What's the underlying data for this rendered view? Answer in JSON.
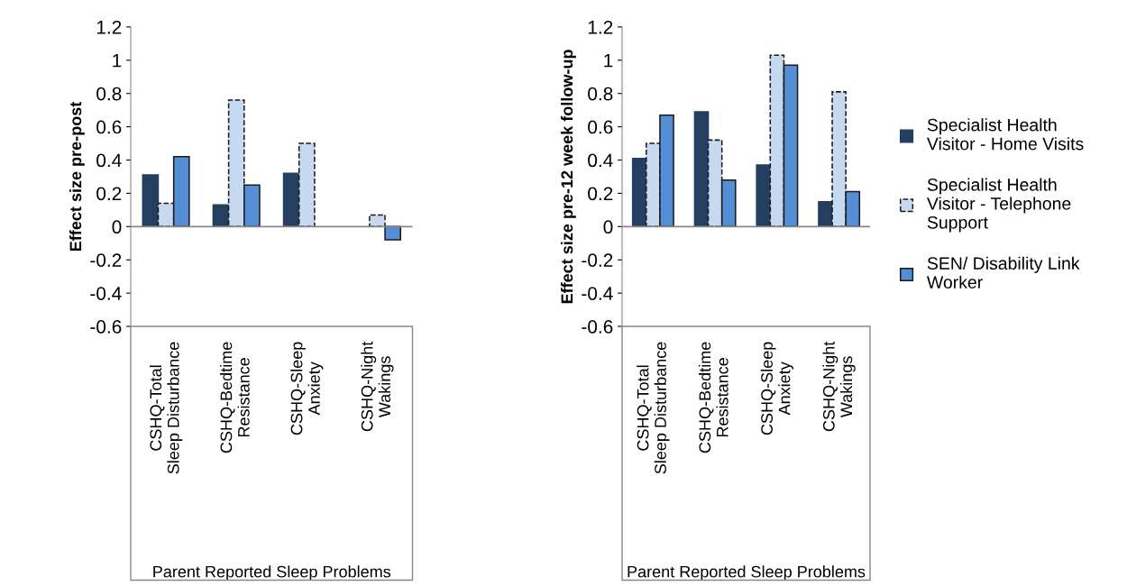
{
  "chart_data": [
    {
      "type": "bar",
      "ylabel": "Effect size pre-post",
      "xlabel": "Parent Reported Sleep Problems",
      "categories": [
        "CSHQ-Total\nSleep Disturbance",
        "CSHQ-Bedtime\nResistance",
        "CSHQ-Sleep\nAnxiety",
        "CSHQ-Night\nWakings"
      ],
      "series": [
        {
          "color": "#243f60",
          "line_style": "solid",
          "values": [
            0.31,
            0.13,
            0.32,
            null
          ]
        },
        {
          "color": "#c6d9f1",
          "line_style": "dashed",
          "values": [
            0.14,
            0.76,
            0.5,
            0.07
          ]
        },
        {
          "color": "#558ed5",
          "line_style": "solid",
          "values": [
            0.42,
            0.25,
            null,
            -0.08
          ]
        }
      ],
      "ylim": [
        -0.6,
        1.2
      ],
      "yticks": [
        -0.6,
        -0.4,
        -0.2,
        0,
        0.2,
        0.4,
        0.6,
        0.8,
        1,
        1.2
      ]
    },
    {
      "type": "bar",
      "ylabel": "Effect size pre-12 week follow-up",
      "xlabel": "Parent Reported Sleep Problems",
      "categories": [
        "CSHQ-Total\nSleep Disturbance",
        "CSHQ-Bedtime\nResistance",
        "CSHQ-Sleep\nAnxiety",
        "CSHQ-Night\nWakings"
      ],
      "series": [
        {
          "name": "Specialist Health\nVisitor - Home Visits",
          "color": "#243f60",
          "line_style": "solid",
          "values": [
            0.41,
            0.69,
            0.37,
            0.15
          ]
        },
        {
          "name": "Specialist Health\nVisitor - Telephone\nSupport",
          "color": "#c6d9f1",
          "line_style": "dashed",
          "values": [
            0.5,
            0.52,
            1.03,
            0.81
          ]
        },
        {
          "name": "SEN/ Disability Link\nWorker",
          "color": "#558ed5",
          "line_style": "solid",
          "values": [
            0.67,
            0.28,
            0.97,
            0.21
          ]
        }
      ],
      "ylim": [
        -0.6,
        1.2
      ],
      "yticks": [
        -0.6,
        -0.4,
        -0.2,
        0,
        0.2,
        0.4,
        0.6,
        0.8,
        1,
        1.2
      ],
      "legend": "right"
    }
  ]
}
